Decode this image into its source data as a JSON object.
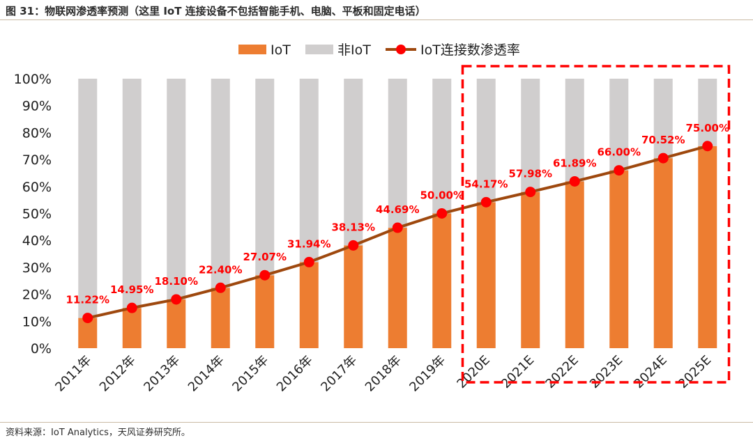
{
  "header": {
    "figure_title": "图 31：物联网渗透率预测（这里 IoT 连接设备不包括智能手机、电脑、平板和固定电话）"
  },
  "footer": {
    "source": "资料来源：IoT Analytics，天风证券研究所。"
  },
  "colors": {
    "iot_bar": "#ED7D31",
    "non_iot_bar": "#D0CECE",
    "line": "#9E480E",
    "marker": "#FF0000",
    "label": "#FF0000",
    "forecast_box": "#FF0000"
  },
  "chart_data": {
    "type": "bar",
    "stacked": true,
    "categories": [
      "2011年",
      "2012年",
      "2013年",
      "2014年",
      "2015年",
      "2016年",
      "2017年",
      "2018年",
      "2019年",
      "2020E",
      "2021E",
      "2022E",
      "2023E",
      "2024E",
      "2025E"
    ],
    "series": [
      {
        "name": "IoT",
        "type": "bar",
        "values": [
          11.22,
          14.95,
          18.1,
          22.4,
          27.07,
          31.94,
          38.13,
          44.69,
          50.0,
          54.17,
          57.98,
          61.89,
          66.0,
          70.52,
          75.0
        ]
      },
      {
        "name": "非IoT",
        "type": "bar",
        "values": [
          88.78,
          85.05,
          81.9,
          77.6,
          72.93,
          68.06,
          61.87,
          55.31,
          50.0,
          45.83,
          42.02,
          38.11,
          34.0,
          29.48,
          25.0
        ]
      },
      {
        "name": "IoT连接数渗透率",
        "type": "line",
        "values": [
          11.22,
          14.95,
          18.1,
          22.4,
          27.07,
          31.94,
          38.13,
          44.69,
          50.0,
          54.17,
          57.98,
          61.89,
          66.0,
          70.52,
          75.0
        ]
      }
    ],
    "data_labels": [
      "11.22%",
      "14.95%",
      "18.10%",
      "22.40%",
      "27.07%",
      "31.94%",
      "38.13%",
      "44.69%",
      "50.00%",
      "54.17%",
      "57.98%",
      "61.89%",
      "66.00%",
      "70.52%",
      "75.00%"
    ],
    "yticks": [
      "0%",
      "10%",
      "20%",
      "30%",
      "40%",
      "50%",
      "60%",
      "70%",
      "80%",
      "90%",
      "100%"
    ],
    "ylim": [
      0,
      100
    ],
    "legend_position": "top-center",
    "grid": false,
    "forecast_highlight": {
      "from": "2020E",
      "to": "2025E",
      "style": "red-dashed-box"
    }
  }
}
